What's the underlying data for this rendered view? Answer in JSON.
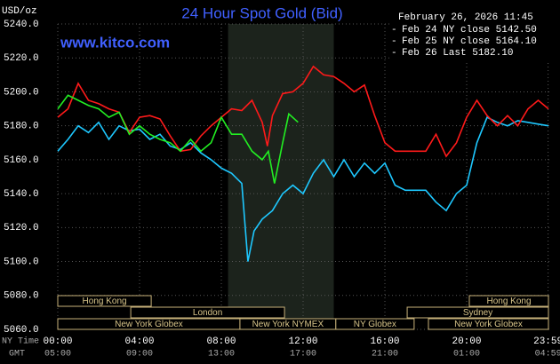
{
  "chart_data": {
    "type": "line",
    "title": "24 Hour Spot Gold (Bid)",
    "website": "www.kitco.com",
    "y_label": "USD/oz",
    "timestamp": "February 26, 2026 11:45",
    "x_label": "NY Time",
    "x2_label": "GMT",
    "xlim": [
      0,
      24
    ],
    "ylim": [
      5060,
      5240
    ],
    "grid": true,
    "xticks": [
      {
        "value": 0,
        "label": "00:00"
      },
      {
        "value": 4,
        "label": "04:00"
      },
      {
        "value": 8,
        "label": "08:00"
      },
      {
        "value": 12,
        "label": "12:00"
      },
      {
        "value": 16,
        "label": "16:00"
      },
      {
        "value": 20,
        "label": "20:00"
      },
      {
        "value": 23.983,
        "label": "23:59"
      }
    ],
    "gmt_labels": [
      "05:00",
      "09:00",
      "13:00",
      "17:00",
      "21:00",
      "01:00",
      "04:59"
    ],
    "yticks": [
      {
        "value": 5060,
        "label": "5060.0"
      },
      {
        "value": 5080,
        "label": "5080.0"
      },
      {
        "value": 5100,
        "label": "5100.0"
      },
      {
        "value": 5120,
        "label": "5120.0"
      },
      {
        "value": 5140,
        "label": "5140.0"
      },
      {
        "value": 5160,
        "label": "5160.0"
      },
      {
        "value": 5180,
        "label": "5180.0"
      },
      {
        "value": 5200,
        "label": "5200.0"
      },
      {
        "value": 5220,
        "label": "5220.0"
      },
      {
        "value": 5240,
        "label": "5240.0"
      }
    ],
    "shade": [
      8.33,
      13.5
    ],
    "sessions": [
      {
        "name": "Hong Kong",
        "start": 0,
        "end": 4.57
      },
      {
        "name": "London",
        "start": 3.57,
        "end": 11.09
      },
      {
        "name": "New York Globex",
        "start": 0,
        "end": 8.91
      },
      {
        "name": "New York NYMEX",
        "start": 8.91,
        "end": 13.6
      },
      {
        "name": "NY Globex",
        "start": 13.6,
        "end": 17.43
      },
      {
        "name": "Hong Kong",
        "start": 20.13,
        "end": 24
      },
      {
        "name": "Sydney",
        "start": 17.09,
        "end": 24
      },
      {
        "name": "New York Globex",
        "start": 18.13,
        "end": 24
      }
    ],
    "series": [
      {
        "name": "Feb 24 NY close 5142.50",
        "color": "#1ec8ff",
        "x": [
          0,
          0.5,
          1,
          1.5,
          2,
          2.5,
          3,
          3.5,
          4,
          4.5,
          5,
          5.5,
          6,
          6.5,
          7,
          7.5,
          8,
          8.5,
          9,
          9.3,
          9.6,
          10,
          10.5,
          11,
          11.5,
          12,
          12.5,
          13,
          13.5,
          14,
          14.5,
          15,
          15.5,
          16,
          16.5,
          17,
          17.5,
          18,
          18.5,
          19,
          19.5,
          20,
          20.5,
          21,
          21.5,
          22,
          22.5,
          23,
          23.5,
          24
        ],
        "values": [
          5165,
          5172,
          5180,
          5176,
          5182,
          5172,
          5180,
          5177,
          5178,
          5172,
          5175,
          5168,
          5166,
          5170,
          5164,
          5160,
          5155,
          5152,
          5146,
          5100,
          5118,
          5125,
          5130,
          5140,
          5145,
          5140,
          5152,
          5160,
          5150,
          5160,
          5150,
          5158,
          5152,
          5158,
          5145,
          5142,
          5142,
          5142,
          5135,
          5130,
          5140,
          5145,
          5170,
          5185,
          5182,
          5180,
          5183,
          5182,
          5181,
          5180
        ]
      },
      {
        "name": "Feb 25 NY close 5164.10",
        "color": "#ff1a1a",
        "x": [
          0,
          0.5,
          1,
          1.5,
          2,
          2.5,
          3,
          3.5,
          4,
          4.5,
          5,
          5.5,
          6,
          6.5,
          7,
          7.5,
          8,
          8.5,
          9,
          9.5,
          10,
          10.25,
          10.5,
          11,
          11.5,
          12,
          12.5,
          13,
          13.5,
          14,
          14.5,
          15,
          15.5,
          16,
          16.5,
          17,
          17.5,
          18,
          18.5,
          19,
          19.5,
          20,
          20.5,
          21,
          21.5,
          22,
          22.5,
          23,
          23.5,
          24
        ],
        "values": [
          5185,
          5190,
          5205,
          5195,
          5193,
          5190,
          5188,
          5176,
          5185,
          5186,
          5184,
          5174,
          5165,
          5166,
          5174,
          5180,
          5185,
          5190,
          5189,
          5195,
          5182,
          5168,
          5186,
          5199,
          5200,
          5205,
          5215,
          5210,
          5209,
          5205,
          5200,
          5204,
          5186,
          5170,
          5165,
          5165,
          5165,
          5165,
          5175,
          5162,
          5170,
          5185,
          5195,
          5186,
          5180,
          5186,
          5180,
          5190,
          5195,
          5190
        ]
      },
      {
        "name": "Feb 26 Last 5182.10",
        "color": "#22ee22",
        "x": [
          0,
          0.5,
          1,
          1.5,
          2,
          2.5,
          3,
          3.5,
          4,
          4.5,
          5,
          5.5,
          6,
          6.5,
          7,
          7.5,
          8,
          8.5,
          9,
          9.5,
          10,
          10.3,
          10.6,
          11,
          11.3,
          11.75
        ],
        "values": [
          5190,
          5198,
          5195,
          5192,
          5190,
          5185,
          5188,
          5175,
          5180,
          5175,
          5172,
          5170,
          5165,
          5172,
          5165,
          5170,
          5185,
          5175,
          5175,
          5165,
          5160,
          5165,
          5146,
          5170,
          5187,
          5182.1
        ]
      }
    ]
  }
}
